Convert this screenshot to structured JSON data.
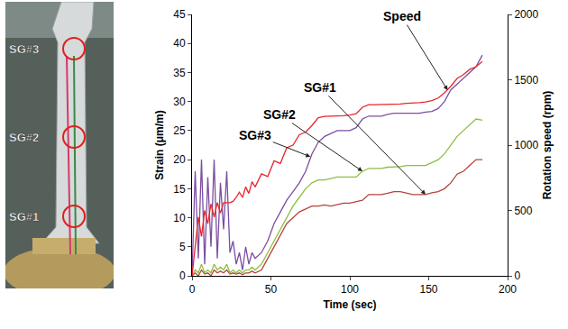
{
  "photo": {
    "labels": [
      "SG#3",
      "SG#2",
      "SG#1"
    ]
  },
  "chart_data": {
    "type": "line",
    "x_label": "Time (sec)",
    "y_label": "Strain (μm/m)",
    "y2_label": "Rotation speed (rpm)",
    "x": [
      0,
      2,
      4,
      6,
      8,
      10,
      12,
      14,
      16,
      18,
      20,
      22,
      24,
      26,
      28,
      30,
      32,
      34,
      36,
      38,
      40,
      44,
      48,
      52,
      56,
      60,
      64,
      68,
      72,
      76,
      80,
      84,
      88,
      92,
      96,
      100,
      104,
      108,
      112,
      116,
      120,
      124,
      128,
      132,
      136,
      140,
      144,
      148,
      152,
      156,
      160,
      164,
      168,
      172,
      176,
      180,
      184
    ],
    "xlim": [
      0,
      200
    ],
    "xticks": [
      0,
      50,
      100,
      150,
      200
    ],
    "ylim": [
      0,
      45
    ],
    "yticks": [
      0,
      5,
      10,
      15,
      20,
      25,
      30,
      35,
      40,
      45
    ],
    "y2lim": [
      0,
      2000
    ],
    "y2ticks": [
      0,
      500,
      1000,
      1500,
      2000
    ],
    "grid": false,
    "series": [
      {
        "name": "SG#1",
        "color": "#b5443c",
        "values": [
          0,
          0.5,
          0,
          1,
          0.3,
          0.5,
          0,
          1,
          0.5,
          0.8,
          0.5,
          1,
          0.3,
          0.5,
          0.3,
          0.5,
          0.2,
          0.5,
          0.5,
          0.8,
          0.5,
          1,
          3,
          5,
          7,
          9,
          10,
          11,
          11.5,
          12,
          12,
          12.2,
          12,
          12.3,
          12.5,
          12.5,
          12.8,
          13,
          14,
          14,
          14,
          14.2,
          14.5,
          14.5,
          14.2,
          14,
          14,
          14,
          14.3,
          14.5,
          15,
          16,
          17.5,
          18,
          19,
          20,
          20
        ]
      },
      {
        "name": "SG#2",
        "color": "#8cbf3f",
        "values": [
          0,
          1,
          0.5,
          2,
          0.5,
          1,
          0.5,
          2,
          1,
          1.5,
          1,
          2,
          0.5,
          1,
          0.5,
          1,
          0.5,
          1,
          1,
          1.5,
          1,
          2,
          4,
          6,
          8,
          10,
          12,
          13.5,
          15,
          16,
          16.5,
          16.5,
          16.8,
          17,
          17,
          17,
          17,
          18,
          18.5,
          18.5,
          18.5,
          18.7,
          18.7,
          18.8,
          19,
          19,
          19,
          19,
          19.5,
          20,
          21,
          22.5,
          24,
          25,
          26,
          27,
          26.8
        ]
      },
      {
        "name": "SG#3",
        "color": "#7b4fa0",
        "values": [
          0,
          18,
          3,
          20,
          2,
          17,
          5,
          20,
          3,
          16,
          8,
          18,
          4,
          6,
          2,
          4,
          1,
          5,
          2,
          4,
          3,
          4,
          6,
          9,
          11,
          13,
          14.5,
          16,
          18,
          21,
          23,
          24,
          24.5,
          25,
          25,
          25,
          25.5,
          27,
          27.5,
          27.5,
          27.5,
          27.8,
          28,
          28,
          28,
          28,
          28,
          28.2,
          28.3,
          28.8,
          30,
          32,
          33,
          34,
          35,
          36,
          38
        ]
      },
      {
        "name": "Speed",
        "color": "#e8262a",
        "axis": "y2",
        "values": [
          0,
          250,
          450,
          300,
          500,
          400,
          550,
          450,
          560,
          480,
          560,
          560,
          560,
          570,
          600,
          640,
          600,
          680,
          630,
          720,
          680,
          780,
          760,
          880,
          860,
          980,
          1000,
          1080,
          1100,
          1150,
          1210,
          1220,
          1220,
          1225,
          1225,
          1230,
          1240,
          1290,
          1310,
          1310,
          1310,
          1315,
          1310,
          1315,
          1320,
          1320,
          1325,
          1330,
          1340,
          1360,
          1400,
          1450,
          1510,
          1540,
          1580,
          1600,
          1640
        ]
      }
    ],
    "annotations": [
      {
        "text": "Speed",
        "x": 162,
        "y": 1420,
        "axis": "y2"
      },
      {
        "text": "SG#1",
        "x": 148,
        "y": 14
      },
      {
        "text": "SG#2",
        "x": 108,
        "y": 18
      },
      {
        "text": "SG#3",
        "x": 75,
        "y": 20.5
      }
    ]
  }
}
